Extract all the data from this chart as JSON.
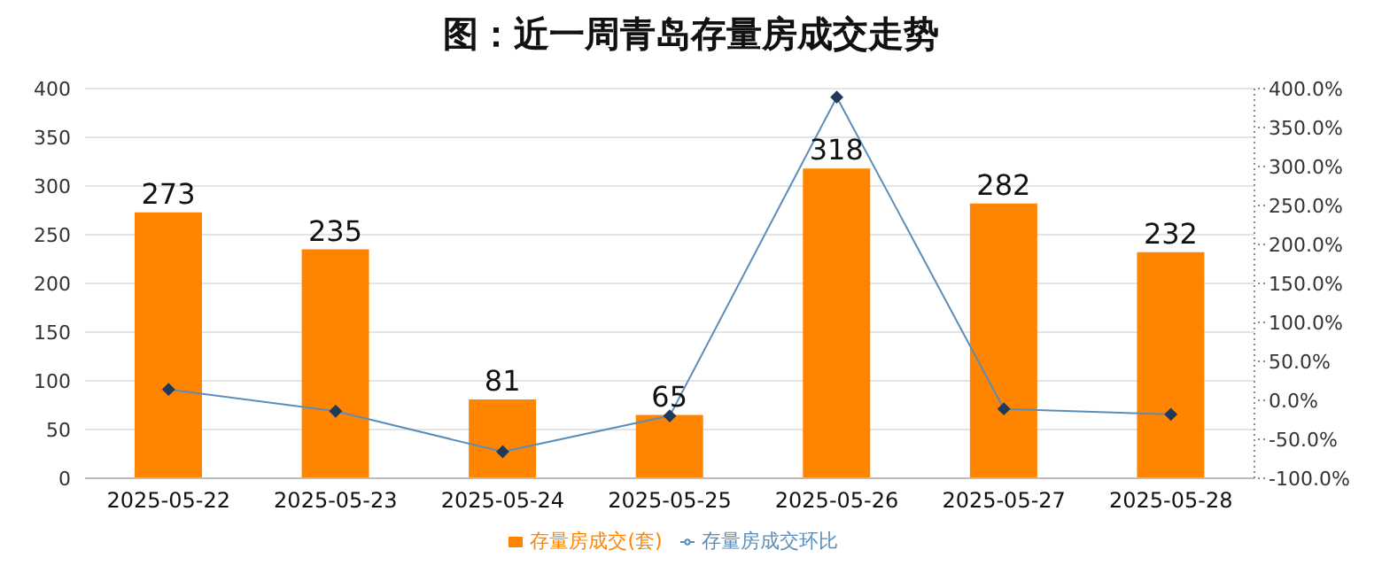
{
  "chart_data": {
    "type": "bar",
    "title": "图：近一周青岛存量房成交走势",
    "categories": [
      "2025-05-22",
      "2025-05-23",
      "2025-05-24",
      "2025-05-25",
      "2025-05-26",
      "2025-05-27",
      "2025-05-28"
    ],
    "series": [
      {
        "name": "存量房成交(套)",
        "color": "#ff8400",
        "values": [
          273,
          235,
          81,
          65,
          318,
          282,
          232
        ],
        "value_labels": [
          "273",
          "235",
          "81",
          "65",
          "318",
          "282",
          "232"
        ]
      },
      {
        "name": "存量房成交环比",
        "type": "line",
        "axis": "y2",
        "color": "#5b8db8",
        "values": [
          14,
          -14,
          -66,
          -20,
          389,
          -11,
          -18
        ]
      }
    ],
    "marker": "diamond",
    "line_style": "solid",
    "ylim": [
      0,
      400
    ],
    "yticks": [
      0,
      50,
      100,
      150,
      200,
      250,
      300,
      350,
      400
    ],
    "y2lim": [
      -100,
      400
    ],
    "y2ticks": [
      {
        "value": -100,
        "label": "-100.0%"
      },
      {
        "value": -50,
        "label": "-50.0%"
      },
      {
        "value": 0,
        "label": "0.0%"
      },
      {
        "value": 50,
        "label": "50.0%"
      },
      {
        "value": 100,
        "label": "100.0%"
      },
      {
        "value": 150,
        "label": "150.0%"
      },
      {
        "value": 200,
        "label": "200.0%"
      },
      {
        "value": 250,
        "label": "250.0%"
      },
      {
        "value": 300,
        "label": "300.0%"
      },
      {
        "value": 350,
        "label": "350.0%"
      },
      {
        "value": 400,
        "label": "400.0%"
      }
    ],
    "grid": "y",
    "legend": "bottom"
  }
}
